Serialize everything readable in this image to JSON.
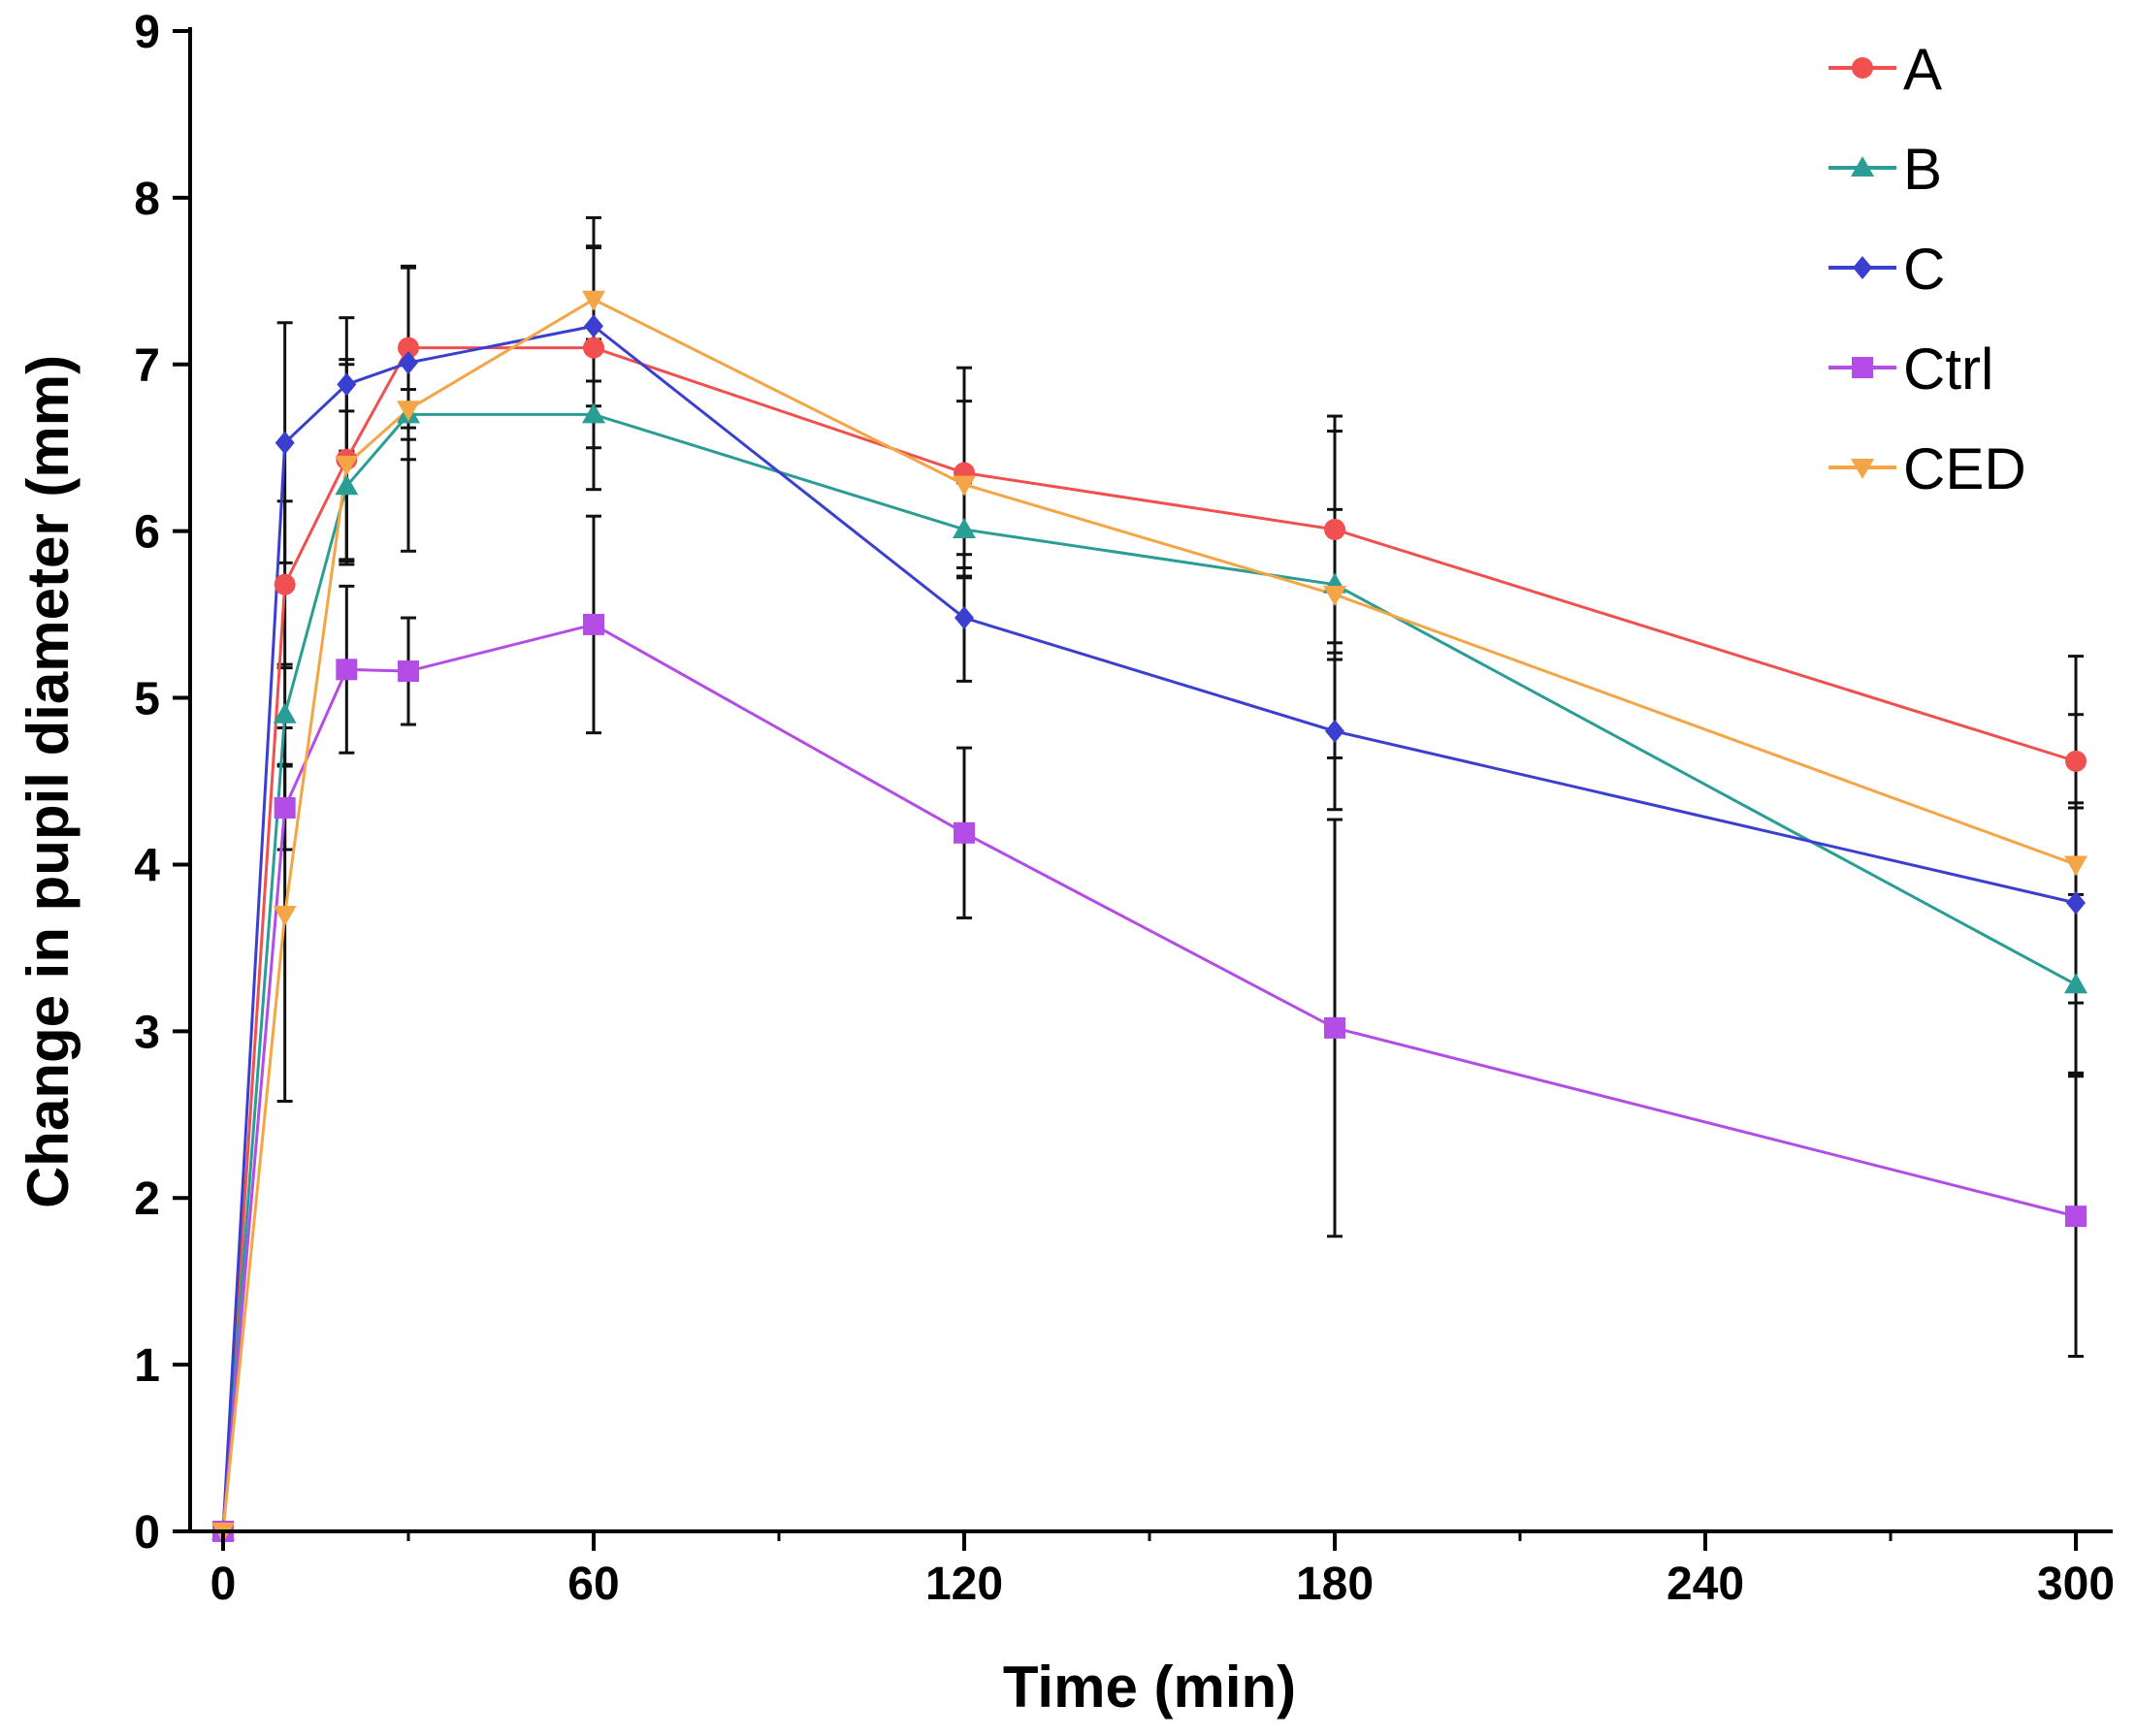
{
  "chart_data": {
    "type": "line",
    "title": "",
    "xlabel": "Time (min)",
    "ylabel": "Change in pupil diameter (mm)",
    "xlim": [
      0,
      300
    ],
    "ylim": [
      0,
      9
    ],
    "xticks": [
      0,
      60,
      120,
      180,
      240,
      300
    ],
    "yticks": [
      0,
      1,
      2,
      3,
      4,
      5,
      6,
      7,
      8,
      9
    ],
    "x": [
      0,
      10,
      20,
      30,
      60,
      120,
      180,
      300
    ],
    "grid": false,
    "legend_position": "top-right",
    "series": [
      {
        "name": "A",
        "color": "#f0504f",
        "marker": "circle",
        "values": [
          0,
          5.68,
          6.43,
          7.1,
          7.1,
          6.35,
          6.01,
          4.62
        ],
        "errors": [
          0,
          0.5,
          0.6,
          0.48,
          0.6,
          0.63,
          0.68,
          0.28
        ]
      },
      {
        "name": "B",
        "color": "#2a9d94",
        "marker": "triangle-up",
        "values": [
          0,
          4.9,
          6.27,
          6.7,
          6.7,
          6.01,
          5.68,
          3.28
        ],
        "errors": [
          0,
          0.3,
          0.45,
          0.15,
          0.45,
          0.28,
          0.45,
          0.54
        ]
      },
      {
        "name": "C",
        "color": "#3b3fcf",
        "marker": "diamond",
        "values": [
          0,
          6.53,
          6.88,
          7.01,
          7.23,
          5.48,
          4.8,
          3.77
        ],
        "errors": [
          0,
          0.72,
          0.4,
          0.58,
          0.48,
          0.38,
          0.47,
          0.6
        ]
      },
      {
        "name": "Ctrl",
        "color": "#b44de6",
        "marker": "square",
        "values": [
          0,
          4.34,
          5.17,
          5.16,
          5.44,
          4.19,
          3.02,
          1.89
        ],
        "errors": [
          0,
          0.25,
          0.5,
          0.32,
          0.65,
          0.51,
          1.25,
          0.84
        ]
      },
      {
        "name": "CED",
        "color": "#f4a545",
        "marker": "triangle-down",
        "values": [
          0,
          3.7,
          6.4,
          6.73,
          7.39,
          6.28,
          5.62,
          4.0
        ],
        "errors": [
          0,
          1.12,
          0.6,
          0.85,
          0.49,
          0.5,
          0.98,
          1.25
        ]
      }
    ]
  }
}
